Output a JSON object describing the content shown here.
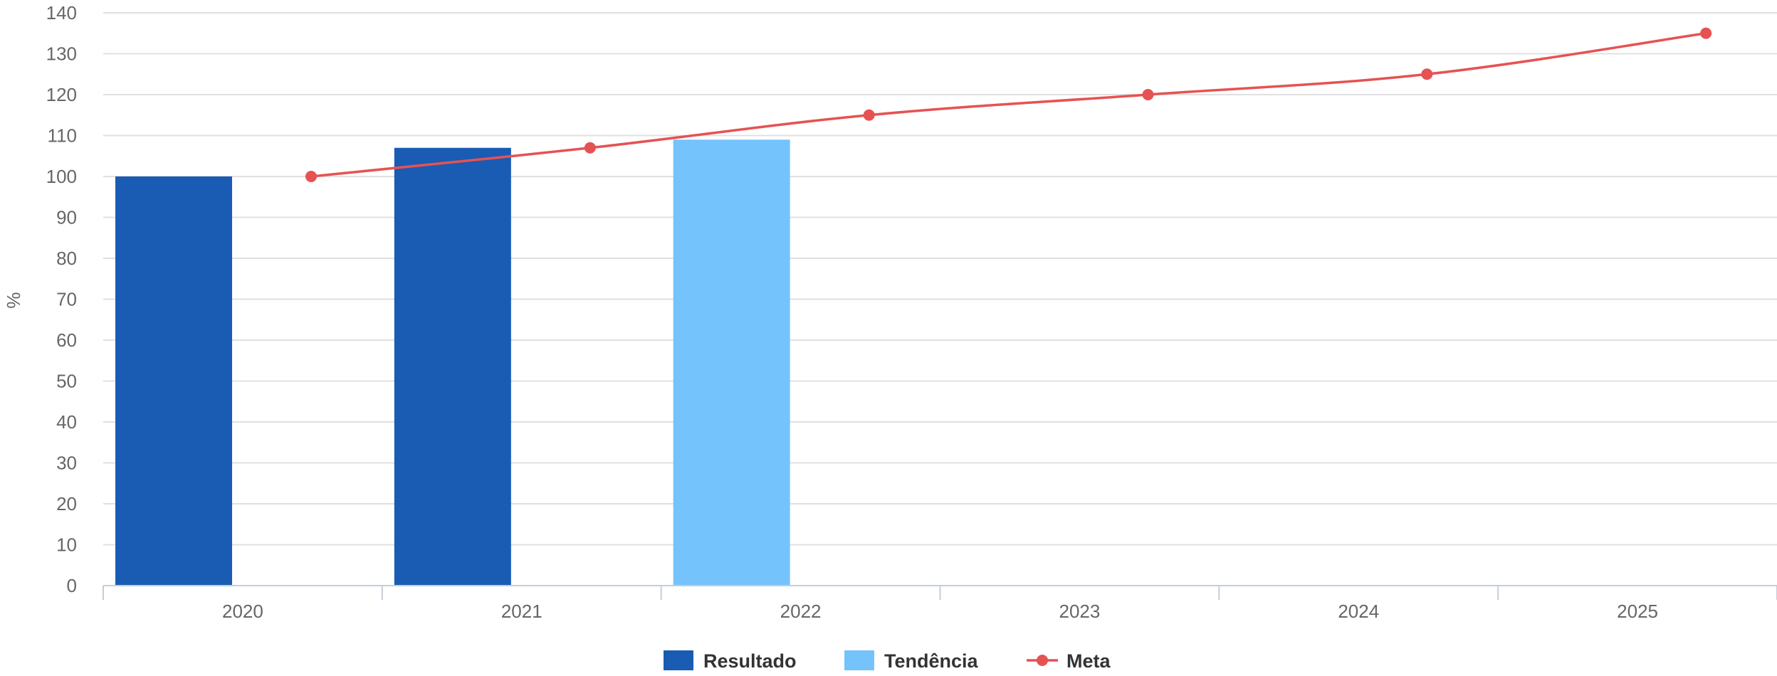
{
  "chart_data": {
    "type": "bar",
    "categories": [
      "2020",
      "2021",
      "2022",
      "2023",
      "2024",
      "2025"
    ],
    "ylabel": "%",
    "xlabel": "",
    "ylim": [
      0,
      140
    ],
    "yticks": [
      0,
      10,
      20,
      30,
      40,
      50,
      60,
      70,
      80,
      90,
      100,
      110,
      120,
      130,
      140
    ],
    "grid": true,
    "legend_position": "bottom-center",
    "series": [
      {
        "name": "Resultado",
        "kind": "bar",
        "color": "#1a5bb4",
        "values": [
          100,
          107,
          null,
          null,
          null,
          null
        ]
      },
      {
        "name": "Tendência",
        "kind": "bar",
        "color": "#74c3fd",
        "values": [
          null,
          null,
          109,
          null,
          null,
          null
        ]
      },
      {
        "name": "Meta",
        "kind": "line",
        "color": "#e65252",
        "values": [
          100,
          107,
          115,
          120,
          125,
          135
        ]
      }
    ]
  }
}
